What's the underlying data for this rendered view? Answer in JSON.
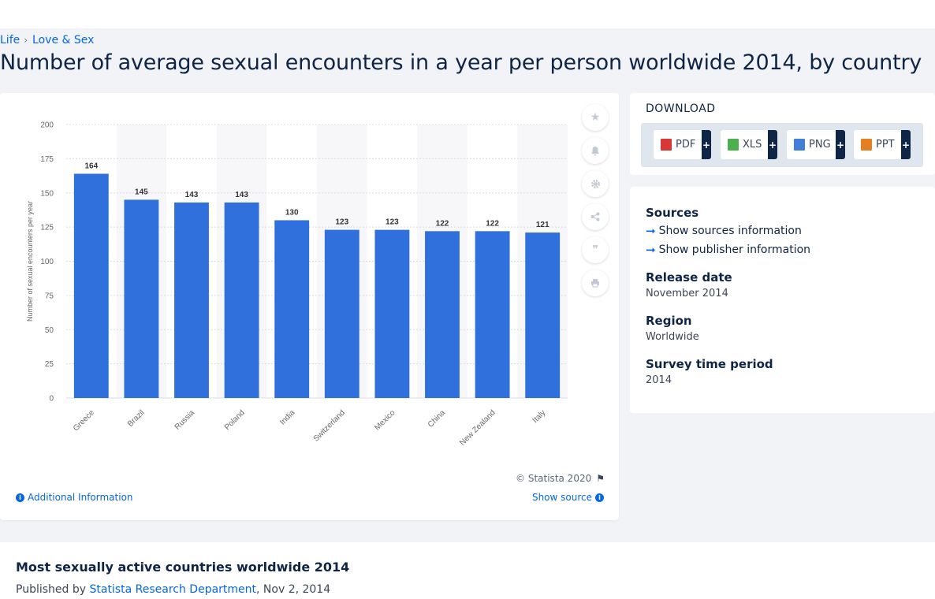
{
  "breadcrumb": [
    "Life",
    "Love & Sex"
  ],
  "page_title": "Number of average sexual encounters in a year per person worldwide 2014, by country",
  "chart_data": {
    "type": "bar",
    "categories": [
      "Greece",
      "Brazil",
      "Russia",
      "Poland",
      "India",
      "Switzerland",
      "Mexico",
      "China",
      "New Zealand",
      "Italy"
    ],
    "values": [
      164,
      145,
      143,
      143,
      130,
      123,
      123,
      122,
      122,
      121
    ],
    "ylabel": "Number of sexual encounters per year",
    "ylim": [
      0,
      200
    ],
    "yticks": [
      0,
      25,
      50,
      75,
      100,
      125,
      150,
      175,
      200
    ],
    "grid": true,
    "data_labels": true,
    "bar_color": "#3070dc"
  },
  "chart_footer": {
    "copyright": "© Statista 2020",
    "additional_info": "Additional Information",
    "show_source": "Show source"
  },
  "tools": [
    "star-icon",
    "bell-icon",
    "gear-icon",
    "share-icon",
    "quote-icon",
    "print-icon"
  ],
  "download": {
    "title": "DOWNLOAD",
    "buttons": [
      {
        "label": "PDF",
        "icon": "pdf-file-icon",
        "color": "#d93636"
      },
      {
        "label": "XLS",
        "icon": "xls-file-icon",
        "color": "#4caf50"
      },
      {
        "label": "PNG",
        "icon": "png-file-icon",
        "color": "#3f7fd9"
      },
      {
        "label": "PPT",
        "icon": "ppt-file-icon",
        "color": "#e67e22"
      }
    ],
    "plus": "+"
  },
  "meta": {
    "sources_heading": "Sources",
    "show_sources": "Show sources information",
    "show_publisher": "Show publisher information",
    "release_heading": "Release date",
    "release_value": "November 2014",
    "region_heading": "Region",
    "region_value": "Worldwide",
    "survey_heading": "Survey time period",
    "survey_value": "2014"
  },
  "bottom": {
    "title": "Most sexually active countries worldwide 2014",
    "published_by": "Published by",
    "publisher": "Statista Research Department",
    "date": ", Nov 2, 2014"
  },
  "colors": {
    "accent": "#0666e5",
    "navy": "#0f2545"
  }
}
